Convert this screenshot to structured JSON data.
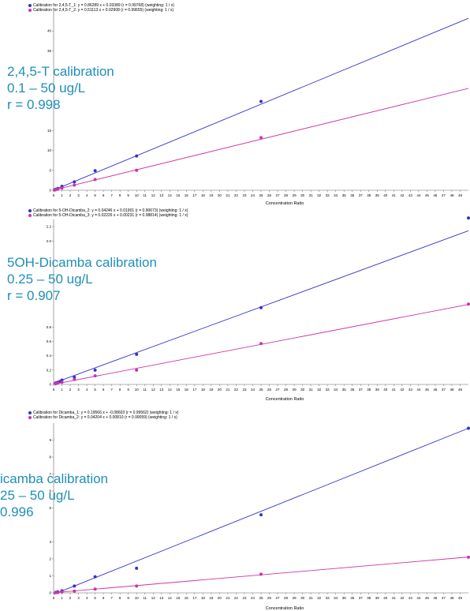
{
  "chart_data": [
    {
      "type": "scatter",
      "xlabel": "Concentration Ratio",
      "xlim": [
        0,
        50
      ],
      "ylim": [
        0,
        45
      ],
      "x_ticks": [
        0,
        1,
        2,
        3,
        4,
        5,
        6,
        7,
        8,
        9,
        10,
        11,
        12,
        13,
        14,
        15,
        16,
        17,
        18,
        19,
        20,
        21,
        22,
        23,
        24,
        25,
        26,
        27,
        28,
        29,
        30,
        31,
        32,
        33,
        34,
        35,
        36,
        37,
        38,
        39,
        40,
        41,
        42,
        43,
        44,
        45,
        46,
        47,
        48,
        49
      ],
      "y_ticks": [
        0,
        5,
        10,
        15,
        35,
        40
      ],
      "legend": [
        "Calibration for 2,4,5-T_1: y = 0.86289 x + 0.03389 (r = 0.99768) (weighting: 1 / x)",
        "Calibration for 2,4,5-T_2: y = 0.51113 x + 0.02908 (r = 0.99655) (weighting: 1 / x)"
      ],
      "overlay": [
        "2,4,5-T calibration",
        "0.1 – 50 ug/L",
        "r = 0.998"
      ],
      "series": [
        {
          "color": "#3333cc",
          "slope": 0.86289,
          "intercept": 0.03389,
          "x": [
            0.1,
            0.25,
            0.5,
            1,
            2.5,
            5,
            10,
            25
          ],
          "y": [
            0.1,
            0.25,
            0.45,
            1.0,
            2.1,
            4.9,
            8.6,
            22.3
          ]
        },
        {
          "color": "#cc33aa",
          "slope": 0.51113,
          "intercept": 0.02908,
          "x": [
            0.1,
            0.25,
            0.5,
            1,
            2.5,
            5,
            10,
            25
          ],
          "y": [
            0.06,
            0.15,
            0.28,
            0.55,
            1.3,
            2.7,
            5.0,
            13.2
          ]
        }
      ]
    },
    {
      "type": "scatter",
      "xlabel": "Concentration Ratio",
      "xlim": [
        0,
        50
      ],
      "ylim": [
        0,
        2.3
      ],
      "x_ticks": [
        0,
        1,
        2,
        3,
        4,
        5,
        6,
        7,
        8,
        9,
        10,
        11,
        12,
        13,
        14,
        15,
        16,
        17,
        18,
        19,
        20,
        21,
        22,
        23,
        24,
        25,
        26,
        27,
        28,
        29,
        30,
        31,
        32,
        33,
        34,
        35,
        36,
        37,
        38,
        39,
        40,
        41,
        42,
        43,
        44,
        45,
        46,
        47,
        48,
        49
      ],
      "y_ticks": [
        0,
        0.2,
        0.4,
        0.6,
        0.8,
        2.0,
        2.2
      ],
      "y_tick_labels": [
        "0",
        "0.2",
        "0.4",
        "0.6",
        "0.8",
        "2.0",
        "2.2"
      ],
      "legend": [
        "Calibration for 5-OH-Dicamba_2: y = 0.04246 x + 0.01901 (r = 0.90673) (weighting: 1 / x)",
        "Calibration for 5-OH-Dicamba_3: y = 0.02226 x + 0.00231 (r = 0.98814) (weighting: 1 / x)"
      ],
      "overlay": [
        "5OH-Dicamba calibration",
        "0.25 – 50 ug/L",
        "r = 0.907"
      ],
      "series": [
        {
          "color": "#3333cc",
          "slope": 0.04246,
          "intercept": 0.01901,
          "x": [
            0.25,
            0.5,
            0.75,
            1,
            2.5,
            5,
            10,
            25,
            50
          ],
          "y": [
            0.02,
            0.03,
            0.04,
            0.06,
            0.1,
            0.2,
            0.42,
            1.07,
            2.32
          ]
        },
        {
          "color": "#cc33aa",
          "slope": 0.02226,
          "intercept": 0.00231,
          "x": [
            0.25,
            0.5,
            1,
            2.5,
            5,
            10,
            25,
            50
          ],
          "y": [
            0.01,
            0.02,
            0.03,
            0.07,
            0.12,
            0.2,
            0.57,
            1.12
          ]
        }
      ]
    },
    {
      "type": "scatter",
      "xlabel": "Concentration Ratio",
      "xlim": [
        0,
        50
      ],
      "ylim": [
        0,
        10
      ],
      "x_ticks": [
        0,
        1,
        2,
        3,
        4,
        5,
        6,
        7,
        8,
        9,
        10,
        11,
        12,
        13,
        14,
        15,
        16,
        17,
        18,
        19,
        20,
        21,
        22,
        23,
        24,
        25,
        26,
        27,
        28,
        29,
        30,
        31,
        32,
        33,
        34,
        35,
        36,
        37,
        38,
        39,
        40,
        41,
        42,
        43,
        44,
        45,
        46,
        47,
        48,
        49
      ],
      "y_ticks": [
        0,
        1,
        2,
        3,
        5,
        6,
        7,
        8,
        9
      ],
      "legend": [
        "Calibration for Dicamba_1: y = 0.19566 x + -0.08603 (r = 0.99562) (weighting: 1 / x)",
        "Calibration for Dicamba_2: y = 0.04204 x + 0.00810 (r = 0.99059) (weighting: 1 / x)"
      ],
      "overlay": [
        "icamba calibration",
        "25 – 50 ug/L",
        "0.996"
      ],
      "series": [
        {
          "color": "#3333cc",
          "slope": 0.19566,
          "intercept": -0.08603,
          "x": [
            0.25,
            0.5,
            1,
            2.5,
            5,
            10,
            25,
            50
          ],
          "y": [
            0.03,
            0.06,
            0.12,
            0.4,
            0.95,
            1.45,
            4.6,
            9.7
          ]
        },
        {
          "color": "#cc33aa",
          "slope": 0.04204,
          "intercept": 0.0081,
          "x": [
            0.25,
            0.5,
            1,
            2.5,
            5,
            10,
            25,
            50
          ],
          "y": [
            0.01,
            0.02,
            0.05,
            0.1,
            0.22,
            0.4,
            1.1,
            2.1
          ]
        }
      ]
    }
  ]
}
